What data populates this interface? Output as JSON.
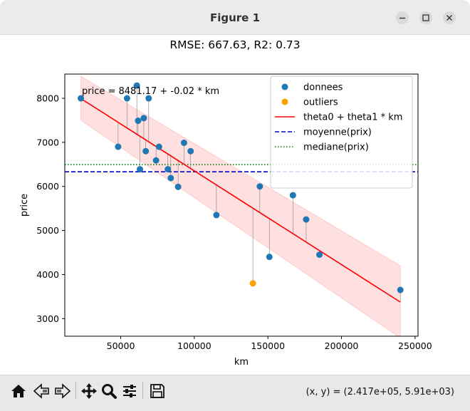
{
  "window": {
    "title": "Figure 1"
  },
  "toolbar": {
    "tools": [
      "home-icon",
      "back-icon",
      "forward-icon",
      "pan-icon",
      "zoom-icon",
      "configure-icon",
      "save-icon"
    ],
    "coords": "(x, y) = (2.417e+05, 5.91e+03)"
  },
  "chart_data": {
    "type": "scatter",
    "title": "RMSE: 667.63, R2: 0.73",
    "xlabel": "km",
    "ylabel": "price",
    "xlim": [
      12000,
      252000
    ],
    "ylim": [
      2600,
      8550
    ],
    "xticks": [
      50000,
      100000,
      150000,
      200000,
      250000
    ],
    "yticks": [
      3000,
      4000,
      5000,
      6000,
      7000,
      8000
    ],
    "annotation": "price = 8481.17 + -0.02 * km",
    "regression": {
      "intercept": 8481.17,
      "slope": -0.02128,
      "x_range": [
        22899,
        240000
      ]
    },
    "confidence_band": {
      "x": [
        22899,
        240000
      ],
      "upper": [
        8500,
        4200
      ],
      "lower": [
        7500,
        2560
      ],
      "color": "#ffd6d6"
    },
    "mean_price": 6331.67,
    "median_price": 6495,
    "legend": {
      "location": "upper right",
      "entries": [
        "donnees",
        "outliers",
        "theta0 + theta1 * km",
        "moyenne(prix)",
        "mediane(prix)"
      ]
    },
    "series": [
      {
        "name": "donnees",
        "color": "#1f77b4",
        "x": [
          22899,
          48235,
          54276,
          60949,
          61789,
          63060,
          65674,
          67000,
          69000,
          76025,
          74000,
          82029,
          84000,
          89000,
          93000,
          97500,
          115000,
          144500,
          151000,
          167000,
          176000,
          185000,
          240000
        ],
        "y": [
          8000,
          6900,
          8000,
          8290,
          7490,
          6390,
          7550,
          6800,
          8000,
          6900,
          6590,
          6390,
          6190,
          5990,
          6990,
          6800,
          5350,
          6000,
          4400,
          5800,
          5250,
          4450,
          3650
        ]
      },
      {
        "name": "outliers",
        "color": "#ff9f00",
        "x": [
          139800
        ],
        "y": [
          3800
        ]
      }
    ],
    "line_colors": {
      "regression": "#ff0000",
      "mean": "#0000cc",
      "median": "#008000",
      "residual": "#808080"
    }
  }
}
